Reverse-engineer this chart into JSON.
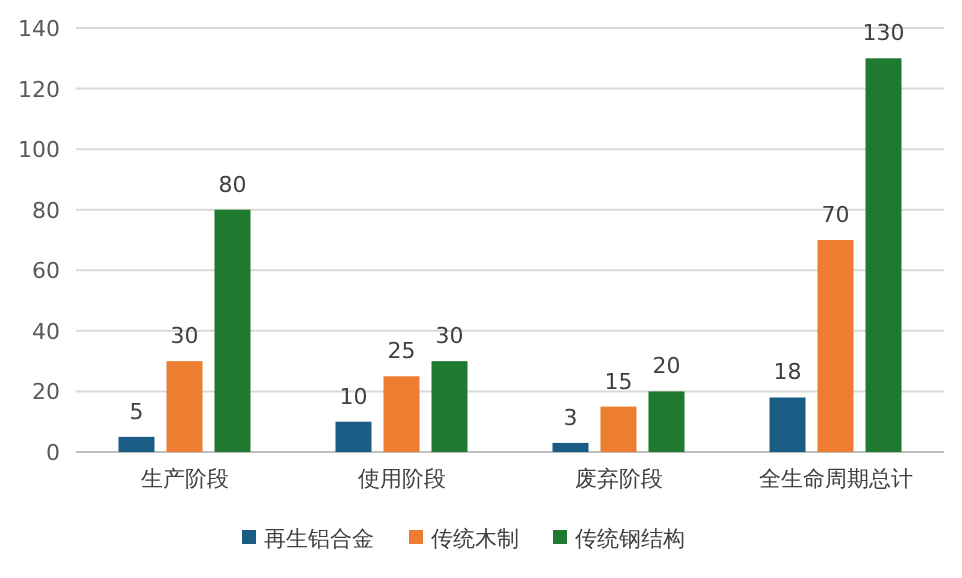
{
  "chart_data": {
    "type": "bar",
    "categories": [
      "生产阶段",
      "使用阶段",
      "废弃阶段",
      "全生命周期总计"
    ],
    "series": [
      {
        "name": "再生铝合金",
        "color": "#1b5c85",
        "values": [
          5,
          10,
          3,
          18
        ]
      },
      {
        "name": "传统木制",
        "color": "#ed7d31",
        "values": [
          30,
          25,
          15,
          70
        ]
      },
      {
        "name": "传统钢结构",
        "color": "#1f7a30",
        "values": [
          80,
          30,
          20,
          130
        ]
      }
    ],
    "ylim": [
      0,
      140
    ],
    "yticks": [
      0,
      20,
      40,
      60,
      80,
      100,
      120,
      140
    ],
    "grid": "y",
    "legend": "bottom",
    "data_labels": true
  }
}
